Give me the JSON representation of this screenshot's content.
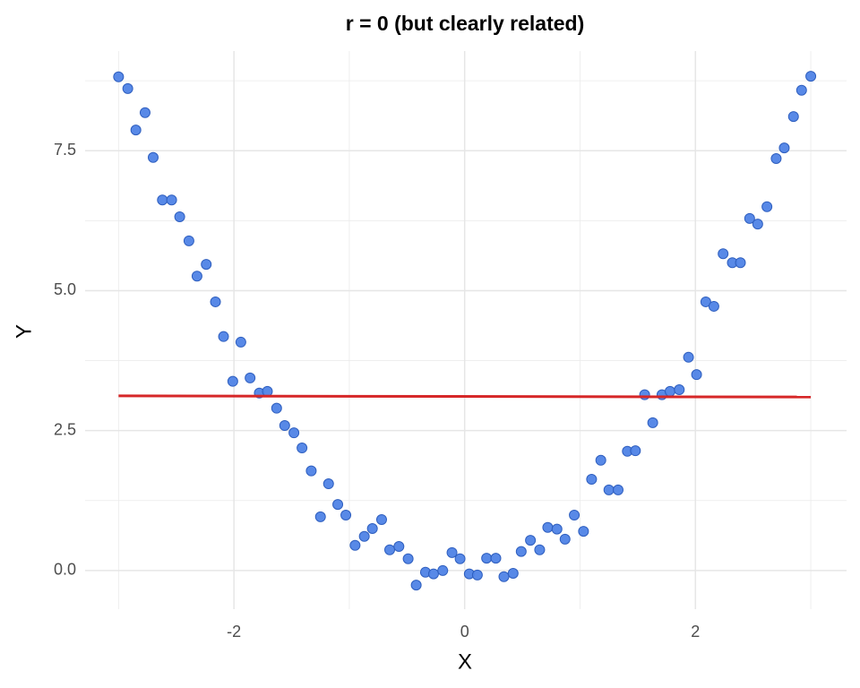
{
  "chart_data": {
    "type": "scatter",
    "title": "r = 0  (but clearly related)",
    "x_label": "X",
    "y_label": "Y",
    "xlim": [
      -3.29,
      3.31
    ],
    "ylim": [
      -0.69,
      9.28
    ],
    "xticks": [
      -2,
      0,
      2
    ],
    "yticks": [
      {
        "value": 0,
        "label": "0.0"
      },
      2.5,
      {
        "value": 5,
        "label": "5.0"
      },
      7.5
    ],
    "x_minor_ticks": [
      -3,
      -1,
      1,
      3
    ],
    "y_minor_ticks": [
      1.25,
      3.75,
      6.25,
      8.75
    ],
    "grid": true,
    "series": [
      {
        "color": "#4f83e6",
        "x": [
          -3.0,
          -2.92,
          -2.85,
          -2.77,
          -2.7,
          -2.62,
          -2.54,
          -2.47,
          -2.39,
          -2.32,
          -2.24,
          -2.16,
          -2.09,
          -2.01,
          -1.94,
          -1.86,
          -1.78,
          -1.71,
          -1.63,
          -1.56,
          -1.48,
          -1.41,
          -1.33,
          -1.25,
          -1.18,
          -1.1,
          -1.03,
          -0.95,
          -0.87,
          -0.8,
          -0.72,
          -0.65,
          -0.57,
          -0.49,
          -0.42,
          -0.34,
          -0.27,
          -0.19,
          -0.11,
          -0.04,
          0.04,
          0.11,
          0.19,
          0.27,
          0.34,
          0.42,
          0.49,
          0.57,
          0.65,
          0.72,
          0.8,
          0.87,
          0.95,
          1.03,
          1.1,
          1.18,
          1.25,
          1.33,
          1.41,
          1.48,
          1.56,
          1.63,
          1.71,
          1.78,
          1.86,
          1.94,
          2.01,
          2.09,
          2.16,
          2.24,
          2.32,
          2.39,
          2.47,
          2.54,
          2.62,
          2.7,
          2.77,
          2.85,
          2.92,
          3.0
        ],
        "values": [
          8.82,
          8.61,
          7.87,
          8.18,
          7.38,
          6.62,
          6.62,
          6.32,
          5.89,
          5.26,
          5.47,
          4.8,
          4.18,
          3.38,
          4.08,
          3.44,
          3.17,
          3.2,
          2.9,
          2.59,
          2.46,
          2.19,
          1.78,
          0.96,
          1.55,
          1.18,
          0.99,
          0.45,
          0.61,
          0.75,
          0.91,
          0.37,
          0.43,
          0.21,
          -0.26,
          -0.03,
          -0.06,
          0.0,
          0.32,
          0.21,
          -0.06,
          -0.08,
          0.22,
          0.22,
          -0.11,
          -0.05,
          0.34,
          0.54,
          0.37,
          0.77,
          0.74,
          0.56,
          0.99,
          0.7,
          1.63,
          1.97,
          1.44,
          1.44,
          2.13,
          2.14,
          3.14,
          2.64,
          3.14,
          3.2,
          3.23,
          3.81,
          3.5,
          4.8,
          4.72,
          5.66,
          5.5,
          5.5,
          6.29,
          6.19,
          6.5,
          7.36,
          7.55,
          8.11,
          8.58,
          8.83
        ]
      }
    ],
    "fit_line": {
      "color": "#d62728",
      "x": [
        -3,
        3
      ],
      "values": [
        3.12,
        3.1
      ]
    }
  }
}
